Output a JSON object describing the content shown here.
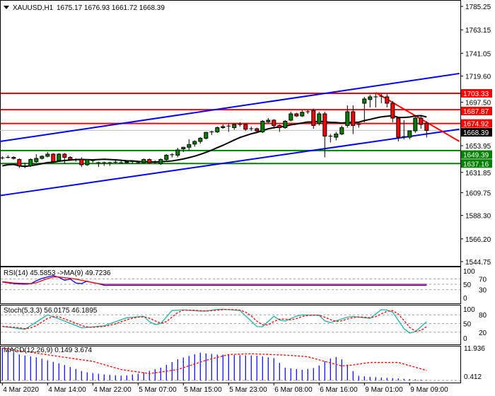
{
  "header": {
    "symbol": "XAUUSD,H1",
    "ohlc": "1675.17 1676.93 1661.72 1668.39"
  },
  "colors": {
    "bull": "#008000",
    "bear": "#ff0000",
    "channel": "#0000ff",
    "resistance": "#ff0000",
    "support": "#008000",
    "ma": "#000000",
    "current": "#000000"
  },
  "chart_data": [
    {
      "type": "candlestick",
      "title": "XAUUSD,H1",
      "ylim": [
        1544.75,
        1785.25
      ],
      "y_ticks": [
        "1785.25",
        "1763.15",
        "1741.05",
        "1719.60",
        "1697.50",
        "1653.95",
        "1631.85",
        "1609.75",
        "1588.30",
        "1566.20",
        "1544.75"
      ],
      "x_ticks": [
        {
          "i": 0,
          "label": "4 Mar 2020"
        },
        {
          "i": 8,
          "label": "4 Mar 14:00"
        },
        {
          "i": 16,
          "label": "4 Mar 22:00"
        },
        {
          "i": 24,
          "label": "5 Mar 07:00"
        },
        {
          "i": 32,
          "label": "5 Mar 15:00"
        },
        {
          "i": 40,
          "label": "5 Mar 23:00"
        },
        {
          "i": 48,
          "label": "6 Mar 08:00"
        },
        {
          "i": 56,
          "label": "6 Mar 16:00"
        },
        {
          "i": 64,
          "label": "9 Mar 01:00"
        },
        {
          "i": 72,
          "label": "9 Mar 09:00"
        }
      ],
      "ohlc": [
        [
          1642.5,
          1644,
          1641,
          1642
        ],
        [
          1643,
          1645,
          1642,
          1643
        ],
        [
          1643,
          1644,
          1641,
          1642
        ],
        [
          1641,
          1642,
          1633,
          1635
        ],
        [
          1635,
          1638,
          1633,
          1635
        ],
        [
          1635,
          1642,
          1634,
          1641
        ],
        [
          1639,
          1646,
          1638,
          1642
        ],
        [
          1642,
          1645,
          1641,
          1644
        ],
        [
          1644,
          1648,
          1643,
          1646
        ],
        [
          1646,
          1647,
          1638,
          1639
        ],
        [
          1640,
          1647,
          1639,
          1646
        ],
        [
          1646,
          1647,
          1637,
          1643
        ],
        [
          1643,
          1644,
          1640,
          1641
        ],
        [
          1641,
          1642,
          1639,
          1641
        ],
        [
          1641,
          1643,
          1634,
          1636
        ],
        [
          1636,
          1641,
          1635,
          1641
        ],
        [
          1640,
          1641,
          1638,
          1640
        ],
        [
          1638,
          1639,
          1634,
          1638
        ],
        [
          1638,
          1639,
          1635,
          1638
        ],
        [
          1638,
          1639,
          1635,
          1638
        ],
        [
          1638,
          1640,
          1637,
          1638.5
        ],
        [
          1638,
          1640,
          1637,
          1638
        ],
        [
          1638,
          1640,
          1637,
          1639
        ],
        [
          1639,
          1640,
          1637,
          1638.5
        ],
        [
          1638,
          1640,
          1637,
          1638
        ],
        [
          1638,
          1642,
          1637,
          1641
        ],
        [
          1641,
          1642,
          1637,
          1638
        ],
        [
          1638,
          1640,
          1637,
          1638.5
        ],
        [
          1637,
          1642,
          1636,
          1641
        ],
        [
          1641,
          1646,
          1640,
          1645
        ],
        [
          1645,
          1647,
          1643,
          1645.5
        ],
        [
          1645,
          1652,
          1643,
          1650
        ],
        [
          1651,
          1653,
          1648,
          1652.5
        ],
        [
          1652.5,
          1660,
          1649,
          1655
        ],
        [
          1655.5,
          1659,
          1653,
          1658
        ],
        [
          1658,
          1662,
          1656,
          1661
        ],
        [
          1661,
          1667,
          1660,
          1666.5
        ],
        [
          1666.5,
          1668,
          1664,
          1667
        ],
        [
          1667,
          1672,
          1666,
          1671
        ],
        [
          1671,
          1674,
          1670,
          1672
        ],
        [
          1672,
          1675,
          1667,
          1672.5
        ],
        [
          1671,
          1675,
          1669,
          1674
        ],
        [
          1674,
          1676,
          1672,
          1674
        ],
        [
          1674,
          1675,
          1668,
          1669.5
        ],
        [
          1670,
          1672,
          1668,
          1670
        ],
        [
          1670,
          1671,
          1666,
          1668
        ],
        [
          1667,
          1678,
          1666,
          1677
        ],
        [
          1676.5,
          1680,
          1675,
          1678
        ],
        [
          1678,
          1679,
          1670,
          1673
        ],
        [
          1673,
          1674,
          1667,
          1671
        ],
        [
          1671,
          1678,
          1670,
          1677
        ],
        [
          1678,
          1686,
          1677,
          1684
        ],
        [
          1684,
          1685,
          1681,
          1682
        ],
        [
          1682,
          1688,
          1681,
          1685.5
        ],
        [
          1685.5,
          1688,
          1684,
          1686
        ],
        [
          1687,
          1689,
          1670,
          1673
        ],
        [
          1675,
          1686,
          1673,
          1684
        ],
        [
          1684,
          1686,
          1643,
          1663
        ],
        [
          1663,
          1665,
          1657,
          1662.5
        ],
        [
          1662,
          1667,
          1659,
          1665
        ],
        [
          1665,
          1673,
          1664,
          1671
        ],
        [
          1673,
          1692,
          1671,
          1686
        ],
        [
          1686,
          1692,
          1665,
          1673
        ],
        [
          1673.5,
          1675,
          1671,
          1674
        ],
        [
          1694,
          1700,
          1676,
          1698
        ],
        [
          1697.5,
          1702,
          1690,
          1700
        ],
        [
          1700,
          1703,
          1690,
          1700
        ],
        [
          1700,
          1703,
          1694,
          1700.5
        ],
        [
          1700,
          1703,
          1690,
          1694
        ],
        [
          1694,
          1696,
          1676,
          1680
        ],
        [
          1680,
          1681,
          1658,
          1662
        ],
        [
          1662,
          1678,
          1660,
          1662.5
        ],
        [
          1662,
          1668,
          1660,
          1668
        ],
        [
          1668,
          1682,
          1666,
          1680
        ],
        [
          1680,
          1682,
          1670,
          1674
        ],
        [
          1675.17,
          1676.93,
          1661.72,
          1668.39
        ]
      ],
      "ma_period": 14,
      "current_price": "1668.39",
      "resistance_levels": [
        "1703.33",
        "1687.87",
        "1674.92"
      ],
      "support_levels": [
        "1649.39",
        "1637.16"
      ],
      "channel_upper": [
        [
          -0.4,
          1658
        ],
        [
          80.8,
          1722
        ]
      ],
      "channel_lower": [
        [
          -0.4,
          1607
        ],
        [
          80.8,
          1669.5
        ]
      ],
      "trendline": [
        [
          66,
          1704
        ],
        [
          80.8,
          1658
        ]
      ]
    },
    {
      "type": "line",
      "title": "RSI(14) 45.5853  ->MA(9) 49.7236",
      "ylim": [
        0,
        100
      ],
      "y_ticks": [
        "100",
        "70",
        "50",
        "30",
        "0"
      ],
      "rsi": [
        [
          0,
          64
        ],
        [
          8,
          58
        ],
        [
          16,
          55
        ],
        [
          26,
          52
        ],
        [
          37,
          50
        ],
        [
          50,
          52
        ],
        [
          53,
          60
        ],
        [
          66,
          74
        ],
        [
          80,
          82
        ],
        [
          86,
          80
        ],
        [
          90,
          72
        ],
        [
          99,
          62
        ],
        [
          103,
          69
        ],
        [
          110,
          72
        ],
        [
          112,
          56
        ],
        [
          115,
          45
        ],
        [
          123,
          56
        ],
        [
          128,
          62
        ],
        [
          136,
          58
        ],
        [
          140,
          42
        ],
        [
          145,
          53
        ],
        [
          150,
          46
        ]
      ],
      "rsi_ma": [
        [
          0,
          62
        ],
        [
          22,
          55
        ],
        [
          52,
          52
        ],
        [
          78,
          77
        ],
        [
          89,
          77
        ],
        [
          111,
          70
        ],
        [
          133,
          58
        ],
        [
          150,
          50
        ]
      ]
    },
    {
      "type": "line",
      "title": "Stoch(5,3,3) 56.0175 46.1895",
      "ylim": [
        0,
        100
      ],
      "y_ticks": [
        "100",
        "80",
        "50",
        "20",
        "0"
      ],
      "main": [
        [
          0,
          40
        ],
        [
          4,
          30
        ],
        [
          8,
          80
        ],
        [
          11.5,
          55
        ],
        [
          14,
          35
        ],
        [
          18,
          42
        ],
        [
          22,
          70
        ],
        [
          25,
          75
        ],
        [
          26.6,
          45
        ],
        [
          28,
          50
        ],
        [
          30,
          95
        ],
        [
          32,
          97
        ],
        [
          35.6,
          92
        ],
        [
          38.4,
          100
        ],
        [
          42,
          95
        ],
        [
          45.5,
          30
        ],
        [
          48,
          75
        ],
        [
          49.6,
          55
        ],
        [
          52.5,
          80
        ],
        [
          56,
          78
        ],
        [
          57.5,
          50
        ],
        [
          61.5,
          75
        ],
        [
          65,
          68
        ],
        [
          67,
          98
        ],
        [
          68.8,
          95
        ],
        [
          71.6,
          15
        ],
        [
          73,
          22
        ],
        [
          75,
          56
        ]
      ],
      "signal_period": 3
    },
    {
      "type": "bar",
      "title": "MACD(12,26,9) 0.149 3.674",
      "y_ticks": [
        "11.936",
        "0.412"
      ],
      "ylim": [
        0,
        11.936
      ],
      "histogram": [
        [
          0,
          12
        ],
        [
          3,
          9.5
        ],
        [
          6,
          8.5
        ],
        [
          10.5,
          6
        ],
        [
          14.5,
          3.1
        ],
        [
          18,
          2.2
        ],
        [
          21.5,
          1.7
        ],
        [
          24.4,
          2.6
        ],
        [
          28,
          4.7
        ],
        [
          31,
          7.8
        ],
        [
          35,
          10.2
        ],
        [
          38,
          9.5
        ],
        [
          45,
          9.1
        ],
        [
          48,
          8.2
        ],
        [
          50,
          4.7
        ],
        [
          53,
          3.9
        ],
        [
          55.5,
          4.7
        ],
        [
          57.5,
          7.8
        ],
        [
          59,
          8.6
        ],
        [
          60.5,
          7.3
        ],
        [
          61.5,
          4.3
        ],
        [
          63,
          1.7
        ],
        [
          65,
          1.3
        ],
        [
          75,
          0.149
        ]
      ],
      "signal": [
        [
          0,
          11.9
        ],
        [
          9,
          9.1
        ],
        [
          16,
          7
        ],
        [
          21,
          4
        ],
        [
          26,
          2.5
        ],
        [
          31,
          4
        ],
        [
          36,
          7.4
        ],
        [
          40,
          9.5
        ],
        [
          44,
          9.8
        ],
        [
          50,
          9.3
        ],
        [
          54,
          8.7
        ],
        [
          60,
          5.3
        ],
        [
          62,
          5.7
        ],
        [
          65,
          6.6
        ],
        [
          70,
          6.6
        ],
        [
          75,
          3.674
        ]
      ]
    }
  ]
}
